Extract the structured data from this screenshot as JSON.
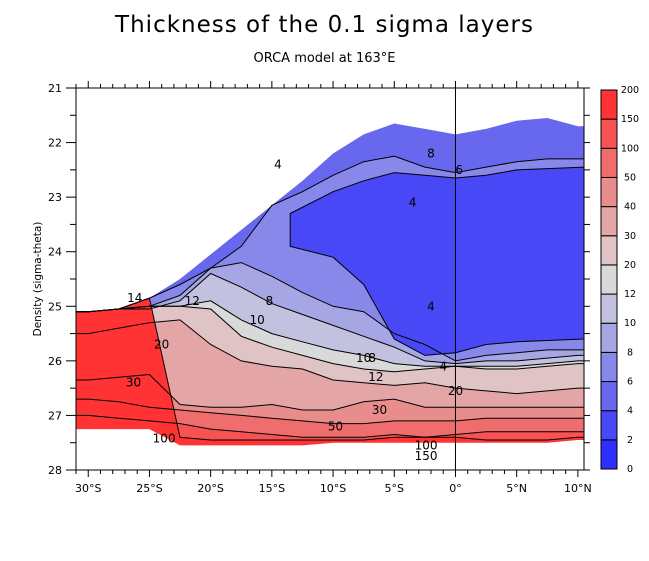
{
  "chart_data": {
    "type": "heatmap",
    "subtype": "filled-contour",
    "title": "Thickness of the 0.1 sigma layers",
    "subtitle": "ORCA model at 163°E",
    "xlabel": "",
    "ylabel": "Density (sigma-theta)",
    "xlim": [
      -31,
      10.5
    ],
    "ylim": [
      21,
      28
    ],
    "y_inverted": true,
    "x_ticks": [
      -30,
      -25,
      -20,
      -15,
      -10,
      -5,
      0,
      5,
      10
    ],
    "x_tick_labels": [
      "30°S",
      "25°S",
      "20°S",
      "15°S",
      "10°S",
      "5°S",
      "0°",
      "5°N",
      "10°N"
    ],
    "y_ticks": [
      21,
      22,
      23,
      24,
      25,
      26,
      27,
      28
    ],
    "y_tick_labels": [
      "21",
      "22",
      "23",
      "24",
      "25",
      "26",
      "27",
      "28"
    ],
    "reference_line_x": 0,
    "colorbar": {
      "placement": "right",
      "levels": [
        0,
        2,
        4,
        6,
        8,
        10,
        12,
        20,
        30,
        40,
        50,
        100,
        150,
        200
      ],
      "level_labels": [
        "0",
        "2",
        "4",
        "6",
        "8",
        "10",
        "12",
        "20",
        "30",
        "40",
        "50",
        "100",
        "150",
        "200"
      ],
      "colors": [
        "#2e2eff",
        "#4848f6",
        "#6868ef",
        "#8888ea",
        "#a6a6e4",
        "#c2c2e0",
        "#d9d9d9",
        "#e0c3c4",
        "#e3a5a6",
        "#e98c8c",
        "#f06d6e",
        "#f85354",
        "#ff3333"
      ]
    },
    "contour_labels": [
      {
        "text": "4",
        "x": -14.5,
        "y": 22.4
      },
      {
        "text": "4",
        "x": -3.5,
        "y": 23.1
      },
      {
        "text": "6",
        "x": 0.3,
        "y": 22.5
      },
      {
        "text": "8",
        "x": -2.0,
        "y": 22.2
      },
      {
        "text": "4",
        "x": -2.0,
        "y": 25.0
      },
      {
        "text": "4",
        "x": -1.0,
        "y": 26.1
      },
      {
        "text": "14",
        "x": -26.2,
        "y": 24.85
      },
      {
        "text": "12",
        "x": -21.5,
        "y": 24.9
      },
      {
        "text": "8",
        "x": -15.2,
        "y": 24.9
      },
      {
        "text": "10",
        "x": -16.2,
        "y": 25.25
      },
      {
        "text": "10",
        "x": -7.5,
        "y": 25.95
      },
      {
        "text": "8",
        "x": -6.8,
        "y": 25.95
      },
      {
        "text": "12",
        "x": -6.5,
        "y": 26.3
      },
      {
        "text": "20",
        "x": -24.0,
        "y": 25.7
      },
      {
        "text": "20",
        "x": 0.0,
        "y": 26.55
      },
      {
        "text": "30",
        "x": -26.3,
        "y": 26.4
      },
      {
        "text": "30",
        "x": -6.2,
        "y": 26.9
      },
      {
        "text": "50",
        "x": -9.8,
        "y": 27.2
      },
      {
        "text": "100",
        "x": -23.8,
        "y": 27.42
      },
      {
        "text": "100",
        "x": -2.4,
        "y": 27.55
      },
      {
        "text": "150",
        "x": -2.4,
        "y": 27.74
      }
    ],
    "bands": [
      {
        "level_index": 0,
        "description": "0-2 deep blue",
        "upper_boundary": [],
        "present": false
      },
      {
        "level_index": 2,
        "description": "core 2-4 region between ~22.3 and ~25.9, x from -14 to 10"
      }
    ],
    "layer_boundaries_sigma": {
      "x": [
        -30,
        -27.5,
        -25,
        -22.5,
        -20,
        -17.5,
        -15,
        -12.5,
        -10,
        -7.5,
        -5,
        -2.5,
        0,
        2.5,
        5,
        7.5,
        10
      ],
      "outcrop_top": [
        25.1,
        25.05,
        24.85,
        24.5,
        24.05,
        23.6,
        23.15,
        22.7,
        22.2,
        21.85,
        21.65,
        21.75,
        21.85,
        21.75,
        21.6,
        21.55,
        21.7
      ],
      "iso_4": [
        null,
        null,
        null,
        24.6,
        24.3,
        23.9,
        23.1,
        22.9,
        22.6,
        22.35,
        22.25,
        22.45,
        22.55,
        22.45,
        22.35,
        22.3,
        22.3
      ],
      "iso_6": [
        null,
        null,
        25.0,
        24.8,
        24.3,
        24.2,
        24.45,
        24.75,
        25.0,
        25.1,
        25.5,
        25.7,
        26.0,
        25.9,
        25.85,
        25.8,
        25.8
      ],
      "iso_8": [
        null,
        null,
        25.05,
        24.9,
        24.4,
        24.65,
        24.95,
        25.15,
        25.35,
        25.55,
        25.75,
        26.0,
        26.05,
        26.0,
        26.0,
        25.95,
        25.9
      ],
      "iso_10": [
        null,
        25.0,
        25.0,
        25.0,
        24.9,
        25.25,
        25.5,
        25.65,
        25.8,
        25.9,
        26.05,
        26.1,
        26.1,
        26.1,
        26.1,
        26.05,
        26.0
      ],
      "iso_12": [
        25.1,
        25.05,
        25.0,
        25.0,
        25.05,
        25.55,
        25.75,
        25.9,
        26.05,
        26.15,
        26.2,
        26.15,
        26.1,
        26.15,
        26.15,
        26.1,
        26.05
      ],
      "iso_20": [
        25.5,
        25.4,
        25.3,
        25.25,
        25.7,
        26.0,
        26.1,
        26.15,
        26.35,
        26.4,
        26.45,
        26.4,
        26.5,
        26.55,
        26.6,
        26.55,
        26.5
      ],
      "iso_30": [
        26.35,
        26.3,
        26.25,
        26.8,
        26.85,
        26.85,
        26.8,
        26.9,
        26.9,
        26.75,
        26.7,
        26.85,
        26.85,
        26.85,
        26.85,
        26.85,
        26.85
      ],
      "iso_50": [
        26.7,
        26.75,
        26.85,
        26.9,
        26.95,
        27.0,
        27.05,
        27.1,
        27.15,
        27.15,
        27.1,
        27.1,
        27.1,
        27.05,
        27.05,
        27.05,
        27.05
      ],
      "iso_100": [
        27.0,
        27.05,
        27.1,
        27.15,
        27.25,
        27.3,
        27.35,
        27.4,
        27.4,
        27.4,
        27.35,
        27.4,
        27.35,
        27.3,
        27.3,
        27.3,
        27.3
      ],
      "iso_150": [
        null,
        null,
        null,
        27.4,
        27.45,
        27.45,
        27.45,
        27.45,
        27.45,
        27.45,
        27.4,
        27.4,
        27.4,
        27.45,
        27.45,
        27.45,
        27.4
      ],
      "bottom": [
        27.25,
        27.25,
        27.25,
        27.55,
        27.55,
        27.55,
        27.55,
        27.55,
        27.5,
        27.5,
        27.5,
        27.5,
        27.5,
        27.5,
        27.5,
        27.5,
        27.45
      ]
    }
  }
}
